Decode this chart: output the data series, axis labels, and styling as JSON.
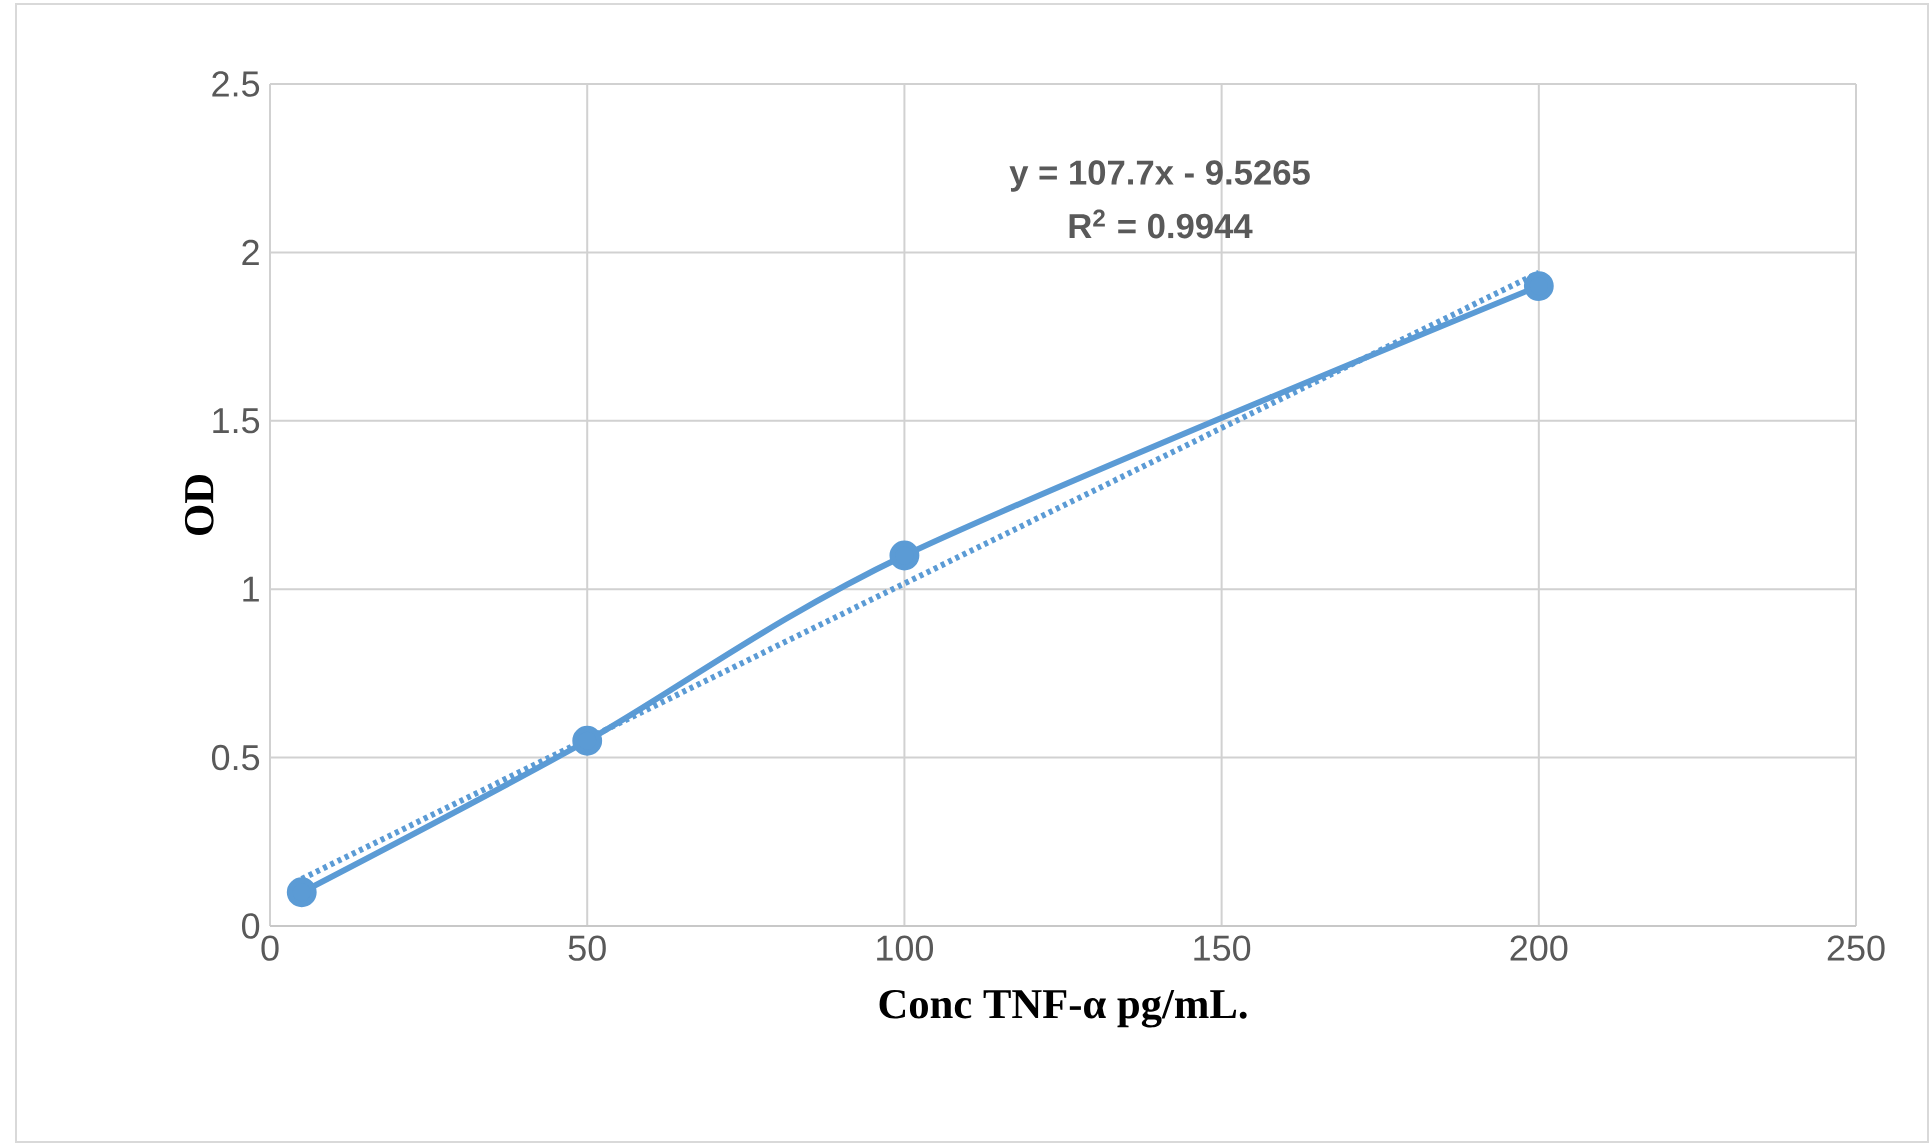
{
  "chart_data": {
    "type": "line",
    "xlabel": "Conc TNF-α pg/mL.",
    "ylabel": "OD",
    "annotations": [
      "y = 107.7x - 9.5265",
      "R$^{2}$ = 0.9944"
    ],
    "series": [
      {
        "color": "#5b9bd5",
        "x": [
          5,
          50,
          100,
          200
        ],
        "values": [
          0.1,
          0.55,
          1.1,
          1.9
        ],
        "marker": "circle",
        "line_style": "solid"
      },
      {
        "color": "#5b9bd5",
        "x": [
          5,
          200
        ],
        "values": [
          0.14,
          1.94
        ],
        "marker": "none",
        "line_style": "dotted"
      }
    ],
    "xlim": [
      0,
      250
    ],
    "xticks": [
      0,
      50,
      100,
      150,
      200,
      250
    ],
    "ylim": [
      0,
      2.5
    ],
    "yticks": [
      0,
      0.5,
      1,
      1.5,
      2,
      2.5
    ],
    "grid": true
  }
}
